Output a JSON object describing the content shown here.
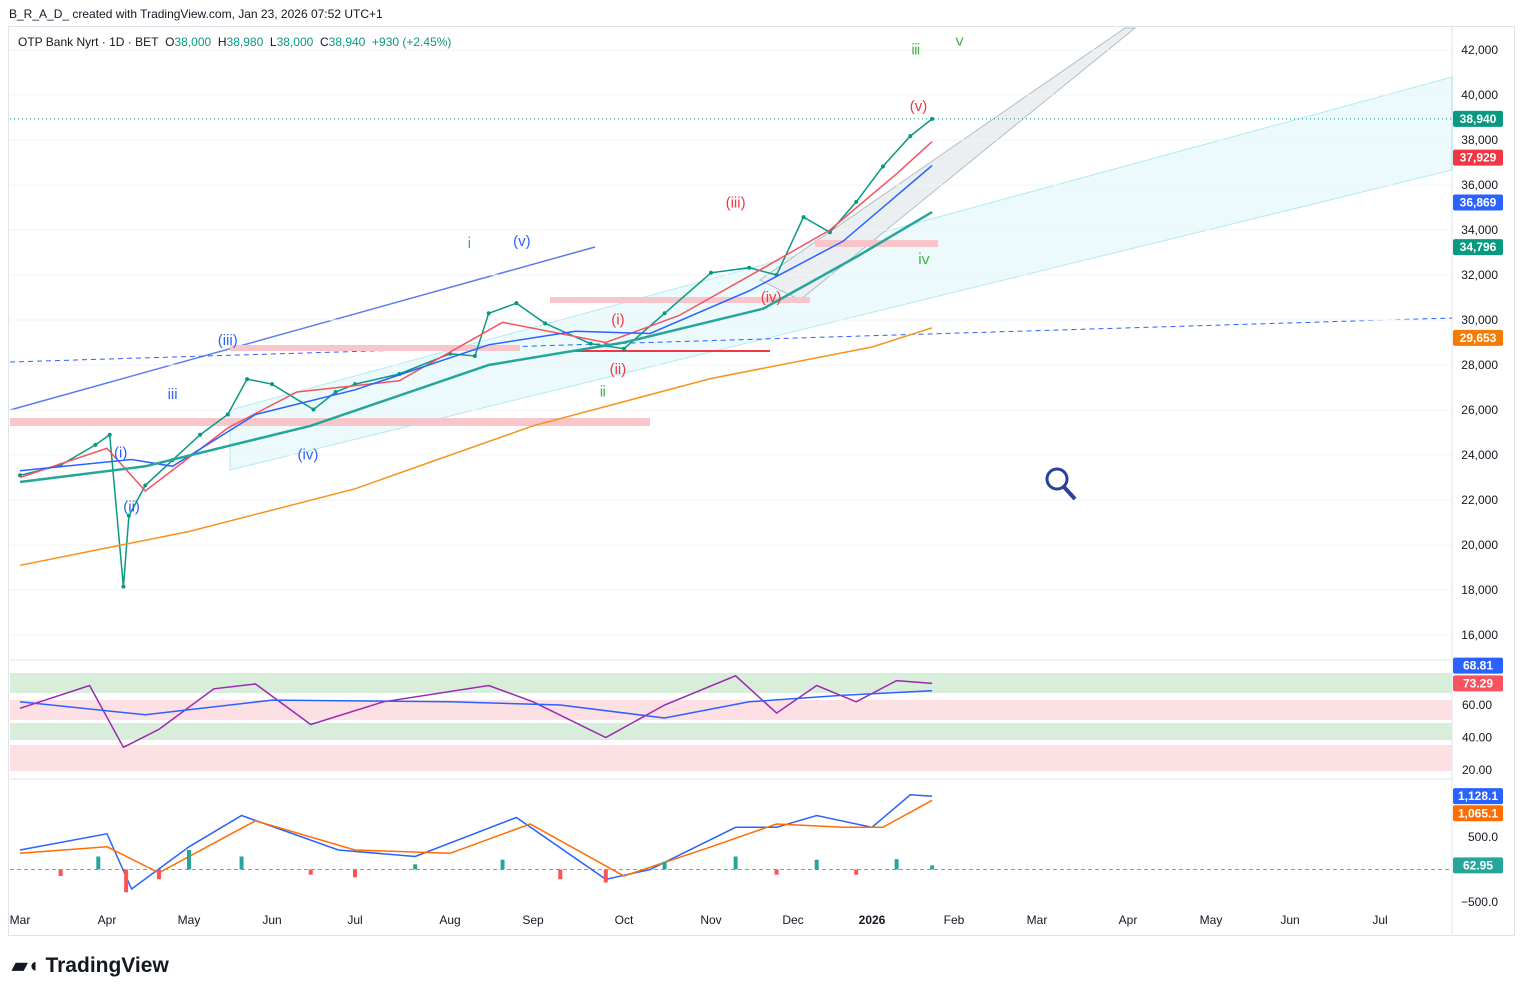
{
  "header": {
    "credit": "B_R_A_D_ created with TradingView.com, Jan 23, 2026 07:52 UTC+1"
  },
  "legend": {
    "symbol": "OTP Bank Nyrt · 1D · BET",
    "o_label": "O",
    "open": "38,000",
    "h_label": "H",
    "high": "38,980",
    "l_label": "L",
    "low": "38,000",
    "c_label": "C",
    "close": "38,940",
    "change": "+930 (+2.45%)"
  },
  "brand": "TradingView",
  "colors": {
    "up": "#089981",
    "down": "#f23645",
    "ema_fast": "#f7525f",
    "ema_mid": "#2962ff",
    "ema_slow": "#26a69a",
    "ema_long": "#f7931a",
    "rsi": "#9c27b0"
  },
  "chart_data": [
    {
      "type": "line",
      "title": "OTP Bank Nyrt 1D price",
      "ylim": [
        15000,
        43000
      ],
      "y_ticks": [
        "42,000",
        "40,000",
        "38,000",
        "36,000",
        "34,000",
        "32,000",
        "30,000",
        "28,000",
        "26,000",
        "24,000",
        "22,000",
        "20,000",
        "18,000",
        "16,000"
      ],
      "y_tick_values": [
        42000,
        40000,
        38000,
        36000,
        34000,
        32000,
        30000,
        28000,
        26000,
        24000,
        22000,
        20000,
        18000,
        16000
      ],
      "x_ticks": [
        "Mar",
        "Apr",
        "May",
        "Jun",
        "Jul",
        "Aug",
        "Sep",
        "Oct",
        "Nov",
        "Dec",
        "2026",
        "Feb",
        "Mar",
        "Apr",
        "May",
        "Jun",
        "Jul"
      ],
      "price_tags": [
        {
          "label": "38,940",
          "value": 38940,
          "color": "#089981"
        },
        {
          "label": "37,929",
          "value": 37929,
          "color": "#f23645"
        },
        {
          "label": "36,869",
          "value": 36869,
          "color": "#2962ff"
        },
        {
          "label": "34,796",
          "value": 34796,
          "color": "#089981"
        },
        {
          "label": "29,653",
          "value": 29653,
          "color": "#f57c00"
        }
      ],
      "series": [
        {
          "name": "Close",
          "color": "#089981",
          "points": [
            [
              "2025-03-01",
              23100
            ],
            [
              "2025-03-15",
              23550
            ],
            [
              "2025-03-27",
              24450
            ],
            [
              "2025-04-02",
              24900
            ],
            [
              "2025-04-07",
              18150
            ],
            [
              "2025-04-09",
              21300
            ],
            [
              "2025-04-15",
              22650
            ],
            [
              "2025-04-25",
              23775
            ],
            [
              "2025-05-05",
              24900
            ],
            [
              "2025-05-15",
              25800
            ],
            [
              "2025-05-22",
              27375
            ],
            [
              "2025-06-01",
              27150
            ],
            [
              "2025-06-16",
              26025
            ],
            [
              "2025-06-24",
              26800
            ],
            [
              "2025-07-01",
              27150
            ],
            [
              "2025-07-15",
              27600
            ],
            [
              "2025-08-01",
              28500
            ],
            [
              "2025-08-10",
              28400
            ],
            [
              "2025-08-15",
              30300
            ],
            [
              "2025-08-25",
              30750
            ],
            [
              "2025-09-05",
              29850
            ],
            [
              "2025-09-20",
              28950
            ],
            [
              "2025-10-01",
              28725
            ],
            [
              "2025-10-15",
              30300
            ],
            [
              "2025-11-01",
              32100
            ],
            [
              "2025-11-15",
              32325
            ],
            [
              "2025-11-25",
              32000
            ],
            [
              "2025-12-05",
              34575
            ],
            [
              "2025-12-15",
              33900
            ],
            [
              "2025-12-25",
              35250
            ],
            [
              "2026-01-05",
              36825
            ],
            [
              "2026-01-15",
              38175
            ],
            [
              "2026-01-23",
              38940
            ]
          ]
        },
        {
          "name": "EMA fast",
          "color": "#f7525f",
          "points": [
            [
              "2025-03-01",
              23000
            ],
            [
              "2025-04-01",
              24300
            ],
            [
              "2025-04-15",
              22400
            ],
            [
              "2025-05-15",
              25200
            ],
            [
              "2025-06-10",
              26800
            ],
            [
              "2025-07-15",
              27300
            ],
            [
              "2025-08-20",
              29900
            ],
            [
              "2025-09-25",
              29000
            ],
            [
              "2025-10-20",
              30200
            ],
            [
              "2025-11-20",
              32300
            ],
            [
              "2025-12-15",
              34000
            ],
            [
              "2026-01-10",
              36500
            ],
            [
              "2026-01-23",
              37929
            ]
          ]
        },
        {
          "name": "EMA mid",
          "color": "#2962ff",
          "points": [
            [
              "2025-03-01",
              23300
            ],
            [
              "2025-04-10",
              23800
            ],
            [
              "2025-04-25",
              23500
            ],
            [
              "2025-05-25",
              25800
            ],
            [
              "2025-07-01",
              26900
            ],
            [
              "2025-08-15",
              28900
            ],
            [
              "2025-09-15",
              29500
            ],
            [
              "2025-10-10",
              29400
            ],
            [
              "2025-11-15",
              31300
            ],
            [
              "2025-12-20",
              33500
            ],
            [
              "2026-01-23",
              36869
            ]
          ]
        },
        {
          "name": "EMA slow",
          "color": "#26a69a",
          "points": [
            [
              "2025-03-01",
              22800
            ],
            [
              "2025-04-15",
              23500
            ],
            [
              "2025-06-15",
              25300
            ],
            [
              "2025-08-15",
              28000
            ],
            [
              "2025-10-01",
              29000
            ],
            [
              "2025-11-20",
              30500
            ],
            [
              "2025-12-25",
              32800
            ],
            [
              "2026-01-23",
              34796
            ]
          ]
        },
        {
          "name": "EMA long",
          "color": "#f7931a",
          "points": [
            [
              "2025-03-01",
              19100
            ],
            [
              "2025-05-01",
              20600
            ],
            [
              "2025-07-01",
              22500
            ],
            [
              "2025-09-01",
              25300
            ],
            [
              "2025-11-01",
              27400
            ],
            [
              "2026-01-01",
              28800
            ],
            [
              "2026-01-23",
              29653
            ]
          ]
        }
      ],
      "annotations": [
        {
          "text": "ⅲ",
          "date": "2026-01-17",
          "value": 41800,
          "color": "#4caf50"
        },
        {
          "text": "ⅴ",
          "date": "2026-02-03",
          "value": 42200,
          "color": "#4caf50"
        },
        {
          "text": "(v)",
          "date": "2026-01-18",
          "value": 39300,
          "color": "#f23645"
        },
        {
          "text": "(iii)",
          "date": "2025-11-10",
          "value": 35000,
          "color": "#f23645"
        },
        {
          "text": "ⅳ",
          "date": "2026-01-20",
          "value": 32500,
          "color": "#4caf50"
        },
        {
          "text": "ⅰ",
          "date": "2025-08-08",
          "value": 33200,
          "color": "#4caf50"
        },
        {
          "text": "(v)",
          "date": "2025-08-27",
          "value": 33300,
          "color": "#2962ff"
        },
        {
          "text": "(iii)",
          "date": "2025-05-15",
          "value": 28900,
          "color": "#2962ff"
        },
        {
          "text": "iii",
          "date": "2025-04-25",
          "value": 26500,
          "color": "#2962ff"
        },
        {
          "text": "(iv)",
          "date": "2025-06-14",
          "value": 23800,
          "color": "#2962ff"
        },
        {
          "text": "(i)",
          "date": "2025-09-29",
          "value": 29800,
          "color": "#f23645"
        },
        {
          "text": "(ii)",
          "date": "2025-09-29",
          "value": 27600,
          "color": "#f23645"
        },
        {
          "text": "ⅱ",
          "date": "2025-09-24",
          "value": 26600,
          "color": "#4caf50"
        },
        {
          "text": "(iv)",
          "date": "2025-11-23",
          "value": 30800,
          "color": "#f23645"
        },
        {
          "text": "(ii)",
          "date": "2025-04-10",
          "value": 21500,
          "color": "#2962ff"
        },
        {
          "text": "(i)",
          "date": "2025-04-06",
          "value": 23900,
          "color": "#2962ff"
        }
      ]
    },
    {
      "type": "line",
      "title": "RSI",
      "ylim": [
        15,
        90
      ],
      "y_ticks": [
        "60.00",
        "40.00",
        "20.00"
      ],
      "y_tick_values": [
        60,
        40,
        20
      ],
      "tags": [
        {
          "label": "73.29",
          "value": 73.29,
          "color": "#f7525f"
        },
        {
          "label": "68.81",
          "value": 68.81,
          "color": "#2962ff"
        }
      ],
      "series": [
        {
          "name": "RSI",
          "color": "#9c27b0",
          "points": [
            [
              "2025-03-01",
              58
            ],
            [
              "2025-03-25",
              72
            ],
            [
              "2025-04-07",
              34
            ],
            [
              "2025-04-20",
              45
            ],
            [
              "2025-05-10",
              70
            ],
            [
              "2025-05-25",
              73
            ],
            [
              "2025-06-15",
              48
            ],
            [
              "2025-07-10",
              62
            ],
            [
              "2025-08-15",
              72
            ],
            [
              "2025-09-01",
              62
            ],
            [
              "2025-09-25",
              40
            ],
            [
              "2025-10-15",
              60
            ],
            [
              "2025-11-10",
              78
            ],
            [
              "2025-11-25",
              55
            ],
            [
              "2025-12-10",
              72
            ],
            [
              "2025-12-25",
              62
            ],
            [
              "2026-01-10",
              75
            ],
            [
              "2026-01-23",
              73.29
            ]
          ]
        },
        {
          "name": "RSI MA",
          "color": "#2962ff",
          "points": [
            [
              "2025-03-01",
              62
            ],
            [
              "2025-04-15",
              54
            ],
            [
              "2025-06-01",
              63
            ],
            [
              "2025-08-01",
              62
            ],
            [
              "2025-09-10",
              60
            ],
            [
              "2025-10-15",
              52
            ],
            [
              "2025-11-15",
              62
            ],
            [
              "2025-12-20",
              66
            ],
            [
              "2026-01-23",
              68.81
            ]
          ]
        }
      ]
    },
    {
      "type": "line",
      "title": "MACD",
      "ylim": [
        -700,
        1400
      ],
      "y_ticks": [
        "500.0",
        "−500.0"
      ],
      "y_tick_values": [
        500,
        -500
      ],
      "tags": [
        {
          "label": "1,128.1",
          "value": 1128.1,
          "color": "#2962ff"
        },
        {
          "label": "1,065.1",
          "value": 1065.1,
          "color": "#ff6d00"
        },
        {
          "label": "62.95",
          "value": 62.95,
          "color": "#26a69a"
        }
      ],
      "series": [
        {
          "name": "MACD",
          "color": "#2962ff",
          "points": [
            [
              "2025-03-01",
              300
            ],
            [
              "2025-04-01",
              550
            ],
            [
              "2025-04-10",
              -300
            ],
            [
              "2025-05-01",
              350
            ],
            [
              "2025-05-20",
              830
            ],
            [
              "2025-06-25",
              300
            ],
            [
              "2025-07-20",
              200
            ],
            [
              "2025-08-25",
              800
            ],
            [
              "2025-09-25",
              -150
            ],
            [
              "2025-10-10",
              0
            ],
            [
              "2025-11-10",
              650
            ],
            [
              "2025-11-25",
              650
            ],
            [
              "2025-12-10",
              830
            ],
            [
              "2026-01-01",
              650
            ],
            [
              "2026-01-15",
              1150
            ],
            [
              "2026-01-23",
              1128.1
            ]
          ]
        },
        {
          "name": "Signal",
          "color": "#ff6d00",
          "points": [
            [
              "2025-03-01",
              250
            ],
            [
              "2025-04-01",
              350
            ],
            [
              "2025-04-20",
              -50
            ],
            [
              "2025-05-25",
              750
            ],
            [
              "2025-07-01",
              300
            ],
            [
              "2025-08-01",
              250
            ],
            [
              "2025-08-30",
              700
            ],
            [
              "2025-10-01",
              -100
            ],
            [
              "2025-11-01",
              350
            ],
            [
              "2025-11-25",
              700
            ],
            [
              "2025-12-20",
              650
            ],
            [
              "2026-01-05",
              650
            ],
            [
              "2026-01-23",
              1065.1
            ]
          ]
        },
        {
          "name": "Histogram",
          "color": "#26a69a",
          "bars": [
            [
              "2025-03-15",
              -100
            ],
            [
              "2025-03-28",
              200
            ],
            [
              "2025-04-08",
              -350
            ],
            [
              "2025-04-20",
              -150
            ],
            [
              "2025-05-01",
              300
            ],
            [
              "2025-05-20",
              200
            ],
            [
              "2025-06-15",
              -80
            ],
            [
              "2025-07-01",
              -120
            ],
            [
              "2025-07-20",
              80
            ],
            [
              "2025-08-20",
              150
            ],
            [
              "2025-09-10",
              -150
            ],
            [
              "2025-09-25",
              -200
            ],
            [
              "2025-10-15",
              120
            ],
            [
              "2025-11-10",
              200
            ],
            [
              "2025-11-25",
              -80
            ],
            [
              "2025-12-10",
              150
            ],
            [
              "2025-12-25",
              -80
            ],
            [
              "2026-01-10",
              160
            ],
            [
              "2026-01-23",
              62.95
            ]
          ]
        }
      ]
    }
  ]
}
